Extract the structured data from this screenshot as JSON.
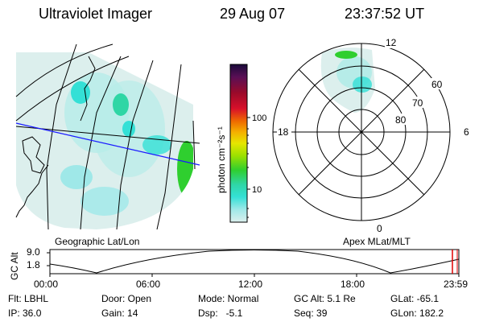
{
  "header": {
    "instrument": "Ultraviolet Imager",
    "date": "29 Aug 07",
    "time": "23:37:52 UT"
  },
  "geo_panel": {
    "caption": "Geographic Lat/Lon"
  },
  "polar_panel": {
    "caption": "Apex MLat/MLT",
    "mlt_labels": {
      "top": "12",
      "left": "18",
      "right": "6",
      "bottom": "0"
    },
    "lat_labels": [
      "60",
      "70",
      "80"
    ]
  },
  "colorbar": {
    "unit_label": "photon cm⁻²s⁻¹",
    "ticks": [
      "100",
      "10"
    ],
    "colors": [
      "#1a0a3a",
      "#5a0f55",
      "#9a0a2a",
      "#d8102a",
      "#ef6a00",
      "#f5b000",
      "#e6e600",
      "#9be000",
      "#2fcf2f",
      "#2fd6a5",
      "#34e0d6",
      "#9fe8e8",
      "#dcefed"
    ]
  },
  "altitude_strip": {
    "axis_label": "GC Alt",
    "ticks": [
      "9.0",
      "1.8"
    ],
    "times": [
      "00:00",
      "06:00",
      "12:00",
      "18:00",
      "23:59"
    ]
  },
  "status": {
    "flt": "Flt: LBHL",
    "ip": "IP: 36.0",
    "door": "Door: Open",
    "gain": "Gain: 14",
    "mode": "Mode: Normal",
    "dsp": "Dsp:   -5.1",
    "gc_alt": "GC Alt: 5.1 Re",
    "seq": "Seq: 39",
    "glat": "GLat: -65.1",
    "glon": "GLon: 182.2"
  }
}
